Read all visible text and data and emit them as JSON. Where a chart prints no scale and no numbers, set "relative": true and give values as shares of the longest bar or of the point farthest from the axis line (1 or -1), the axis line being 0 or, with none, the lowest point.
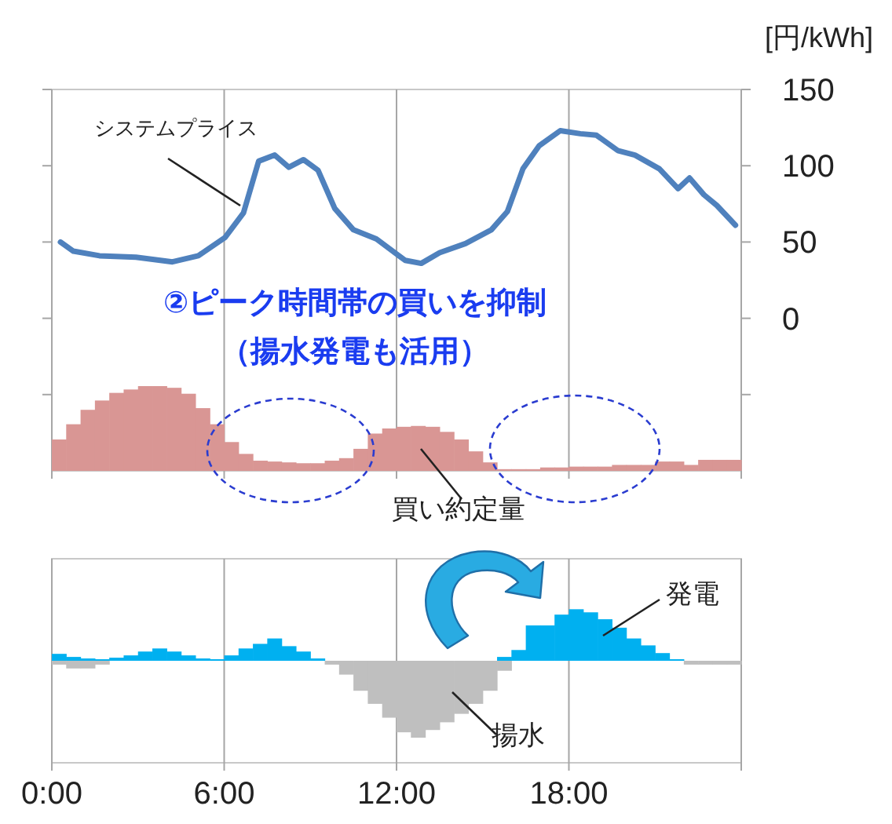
{
  "chart_data": [
    {
      "type": "line",
      "ylabel": "[円/kWh]",
      "xlim": [
        0,
        24
      ],
      "ylim": [
        -100,
        150
      ],
      "grid": "x",
      "tick_labels": "y",
      "xticks": [
        {
          "value": 0,
          "label": null
        },
        {
          "value": 6,
          "label": null
        },
        {
          "value": 12,
          "label": null
        },
        {
          "value": 18,
          "label": null
        },
        {
          "value": 24,
          "label": null
        }
      ],
      "yticks": [
        {
          "value": -50,
          "label": null
        },
        0,
        50,
        100,
        150
      ],
      "series": [
        {
          "name": "システムプライス",
          "color": "#4f81bd",
          "x": [
            0.3,
            0.75,
            1.66,
            2.93,
            4.2,
            5.1,
            6.03,
            6.67,
            7.2,
            7.76,
            8.25,
            8.76,
            9.27,
            9.85,
            10.5,
            11.3,
            12.3,
            12.86,
            13.5,
            14.4,
            15.3,
            15.86,
            16.4,
            16.96,
            17.7,
            18.4,
            18.96,
            19.7,
            20.3,
            21.15,
            21.8,
            22.2,
            22.7,
            23.15,
            23.8
          ],
          "values": [
            50,
            44,
            41,
            40,
            37,
            41,
            53,
            69,
            103,
            107,
            99,
            104,
            97,
            72,
            58,
            52,
            38,
            36,
            43,
            49,
            58,
            70,
            98,
            113,
            123,
            121,
            120,
            110,
            107,
            98,
            85,
            92,
            81,
            74,
            61
          ]
        }
      ],
      "annotations": [
        "②ピーク時間帯の買いを抑制",
        "（揚水発電も活用）"
      ]
    },
    {
      "type": "bar",
      "relative": true,
      "tick_labels": false,
      "xlim": [
        0,
        24
      ],
      "x": [
        0.25,
        0.75,
        1.25,
        1.75,
        2.25,
        2.75,
        3.25,
        3.75,
        4.25,
        4.75,
        5.25,
        5.75,
        6.25,
        6.75,
        7.25,
        7.75,
        8.25,
        8.75,
        9.25,
        9.75,
        10.25,
        10.75,
        11.25,
        11.75,
        12.25,
        12.75,
        13.25,
        13.75,
        14.25,
        14.75,
        15.25,
        15.75,
        16.25,
        16.75,
        17.25,
        17.75,
        18.25,
        18.75,
        19.25,
        19.75,
        20.25,
        20.75,
        21.25,
        21.75,
        22.25,
        22.75,
        23.25,
        23.75
      ],
      "series": [
        {
          "name": "買い約定量",
          "color": "#d99694",
          "values": [
            0.37,
            0.55,
            0.72,
            0.83,
            0.92,
            0.96,
            1,
            1,
            0.98,
            0.91,
            0.74,
            0.55,
            0.34,
            0.2,
            0.12,
            0.11,
            0.1,
            0.09,
            0.09,
            0.12,
            0.15,
            0.26,
            0.44,
            0.5,
            0.52,
            0.53,
            0.52,
            0.46,
            0.37,
            0.23,
            0.1,
            0.02,
            0.02,
            0.02,
            0.04,
            0.04,
            0.05,
            0.05,
            0.05,
            0.07,
            0.07,
            0.07,
            0.11,
            0.11,
            0.07,
            0.13,
            0.13,
            0.13
          ]
        }
      ]
    },
    {
      "type": "bar",
      "relative": true,
      "tick_labels": "x",
      "grid": "x",
      "xlim": [
        0,
        24
      ],
      "xticks": [
        {
          "value": 0,
          "label": "0:00"
        },
        {
          "value": 6,
          "label": "6:00"
        },
        {
          "value": 12,
          "label": "12:00"
        },
        {
          "value": 18,
          "label": "18:00"
        },
        {
          "value": 24,
          "label": null
        }
      ],
      "x": [
        0.25,
        0.75,
        1.25,
        1.75,
        2.25,
        2.75,
        3.25,
        3.75,
        4.25,
        4.75,
        5.25,
        5.75,
        6.25,
        6.75,
        7.25,
        7.75,
        8.25,
        8.75,
        9.25,
        9.75,
        10.25,
        10.75,
        11.25,
        11.75,
        12.25,
        12.75,
        13.25,
        13.75,
        14.25,
        14.75,
        15.25,
        15.75,
        16.25,
        16.75,
        17.25,
        17.75,
        18.25,
        18.75,
        19.25,
        19.75,
        20.25,
        20.75,
        21.25,
        21.75,
        22.25,
        22.75,
        23.25,
        23.75
      ],
      "series": [
        {
          "name": "発電",
          "color": "#00b0f0",
          "values": [
            0.09,
            0.05,
            0.03,
            0.02,
            0.04,
            0.07,
            0.12,
            0.16,
            0.12,
            0.07,
            0.03,
            0.02,
            0.07,
            0.16,
            0.22,
            0.29,
            0.19,
            0.12,
            0.03,
            0,
            0,
            0,
            0,
            0,
            0,
            0,
            0,
            0,
            0,
            0,
            0,
            0.05,
            0.14,
            0.46,
            0.46,
            0.6,
            0.67,
            0.63,
            0.54,
            0.43,
            0.29,
            0.2,
            0.1,
            0.02,
            0,
            0,
            0,
            0
          ]
        },
        {
          "name": "揚水",
          "color": "#bfbfbf",
          "values": [
            -0.05,
            -0.1,
            -0.1,
            -0.05,
            0,
            0,
            0,
            0,
            0,
            0,
            0,
            0,
            0,
            0,
            0,
            0,
            0,
            0,
            0,
            -0.05,
            -0.18,
            -0.39,
            -0.56,
            -0.74,
            -0.93,
            -1,
            -0.9,
            -0.8,
            -0.69,
            -0.56,
            -0.39,
            -0.13,
            0,
            0,
            0,
            0,
            0,
            0,
            0,
            0,
            0,
            0,
            0,
            0,
            -0.05,
            -0.05,
            -0.05,
            -0.05
          ]
        }
      ]
    }
  ]
}
